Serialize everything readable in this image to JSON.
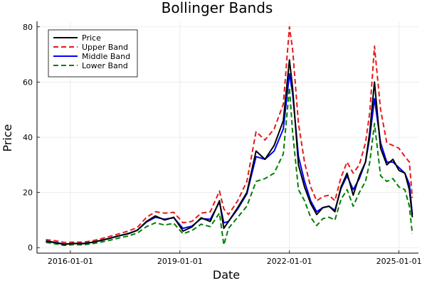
{
  "chart_data": {
    "type": "line",
    "title": "Bollinger Bands",
    "xlabel": "Date",
    "ylabel": "Price",
    "xlim": [
      "2015-02-01",
      "2025-07-15"
    ],
    "ylim": [
      -2,
      82
    ],
    "grid": true,
    "legend_position": "top-left",
    "x_ticks": [
      "2016-01-01",
      "2019-01-01",
      "2022-01-01",
      "2025-01-01"
    ],
    "y_ticks": [
      0,
      20,
      40,
      60,
      80
    ],
    "dates": [
      "2015-05-01",
      "2015-08-01",
      "2015-11-01",
      "2016-02-01",
      "2016-05-01",
      "2016-08-01",
      "2016-11-01",
      "2017-02-01",
      "2017-05-01",
      "2017-08-01",
      "2017-11-01",
      "2018-02-01",
      "2018-05-01",
      "2018-08-01",
      "2018-11-01",
      "2019-02-01",
      "2019-05-01",
      "2019-08-01",
      "2019-11-01",
      "2020-02-01",
      "2020-03-15",
      "2020-05-01",
      "2020-08-01",
      "2020-11-01",
      "2021-02-01",
      "2021-05-01",
      "2021-08-01",
      "2021-11-01",
      "2022-01-01",
      "2022-02-01",
      "2022-04-01",
      "2022-06-01",
      "2022-08-01",
      "2022-10-01",
      "2022-12-01",
      "2023-02-01",
      "2023-04-01",
      "2023-06-01",
      "2023-08-01",
      "2023-10-01",
      "2023-12-01",
      "2024-02-01",
      "2024-03-15",
      "2024-05-01",
      "2024-07-01",
      "2024-09-01",
      "2024-11-01",
      "2025-01-01",
      "2025-03-01",
      "2025-04-15",
      "2025-05-15"
    ],
    "series": [
      {
        "name": "Price",
        "color": "#000000",
        "dash": "solid",
        "values": [
          2.3,
          1.8,
          1.2,
          1.5,
          1.4,
          1.9,
          2.6,
          3.4,
          4.3,
          5.0,
          6.3,
          9.5,
          11.5,
          10.0,
          11.0,
          6.0,
          7.5,
          10.8,
          9.5,
          17.0,
          7.0,
          9.5,
          14.5,
          20.0,
          35.0,
          32.0,
          37.0,
          46.0,
          68.0,
          58.0,
          30.0,
          22.0,
          16.0,
          12.0,
          14.5,
          15.0,
          13.0,
          22.0,
          27.0,
          19.0,
          26.0,
          31.0,
          42.0,
          60.0,
          36.0,
          30.0,
          32.0,
          28.0,
          27.0,
          21.0,
          11.0
        ]
      },
      {
        "name": "Upper Band",
        "color": "#e41a1c",
        "dash": "dashed",
        "values": [
          2.9,
          2.5,
          1.9,
          2.0,
          2.0,
          2.4,
          3.2,
          4.1,
          5.0,
          6.0,
          7.3,
          11.0,
          13.0,
          12.5,
          12.8,
          9.0,
          9.5,
          12.5,
          13.0,
          20.5,
          14.0,
          12.0,
          17.0,
          24.0,
          42.0,
          39.0,
          43.0,
          52.0,
          80.0,
          72.0,
          45.0,
          31.0,
          22.0,
          17.0,
          18.5,
          19.0,
          17.0,
          25.5,
          31.0,
          27.0,
          30.0,
          38.0,
          49.0,
          73.0,
          50.0,
          38.0,
          37.0,
          36.0,
          33.0,
          31.0,
          18.0
        ]
      },
      {
        "name": "Middle Band",
        "color": "#0000ff",
        "dash": "solid",
        "values": [
          2.4,
          1.9,
          1.3,
          1.5,
          1.5,
          1.9,
          2.6,
          3.4,
          4.3,
          5.1,
          6.3,
          9.3,
          11.0,
          10.3,
          10.8,
          7.0,
          7.8,
          10.5,
          10.3,
          16.5,
          9.0,
          9.5,
          14.0,
          19.5,
          33.0,
          32.0,
          35.0,
          43.0,
          63.0,
          56.0,
          33.0,
          24.0,
          17.0,
          13.0,
          14.5,
          15.0,
          13.5,
          21.5,
          26.0,
          21.0,
          25.0,
          31.0,
          40.0,
          54.0,
          38.0,
          31.0,
          31.0,
          29.0,
          27.0,
          23.0,
          12.0
        ]
      },
      {
        "name": "Lower Band",
        "color": "#008000",
        "dash": "dashed",
        "values": [
          1.9,
          1.4,
          0.8,
          1.1,
          1.0,
          1.4,
          2.0,
          2.7,
          3.5,
          4.2,
          5.3,
          7.6,
          9.0,
          8.2,
          8.8,
          5.0,
          6.2,
          8.5,
          7.6,
          12.5,
          1.0,
          7.0,
          11.0,
          15.0,
          24.0,
          25.0,
          27.0,
          34.0,
          58.0,
          42.0,
          21.0,
          17.0,
          11.0,
          8.0,
          10.5,
          11.0,
          10.0,
          17.5,
          21.0,
          15.0,
          20.0,
          24.0,
          31.0,
          45.0,
          26.0,
          24.0,
          25.0,
          22.0,
          21.0,
          15.0,
          5.0
        ]
      }
    ]
  }
}
